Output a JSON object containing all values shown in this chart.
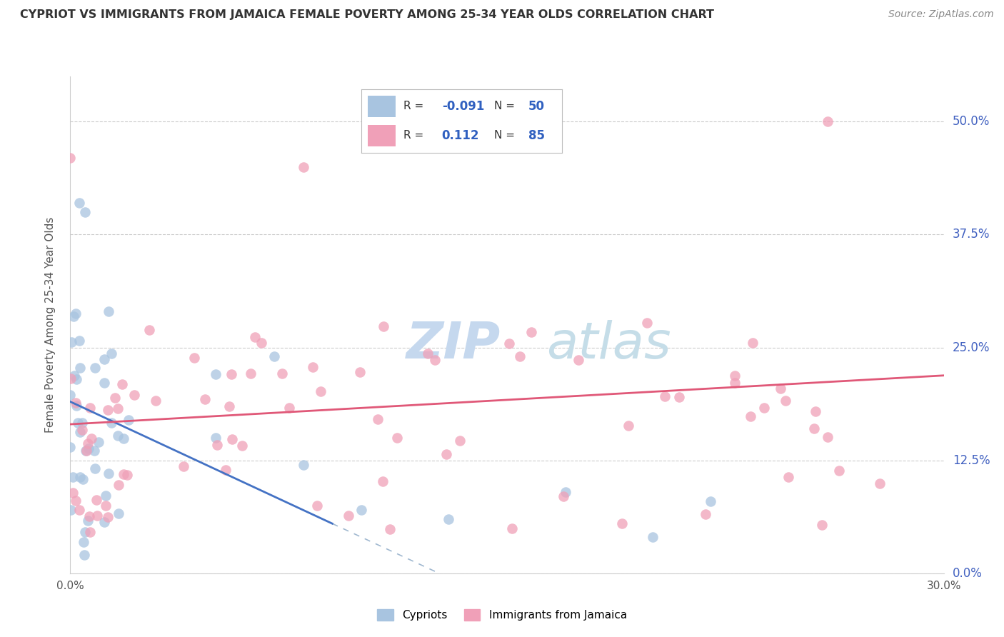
{
  "title": "CYPRIOT VS IMMIGRANTS FROM JAMAICA FEMALE POVERTY AMONG 25-34 YEAR OLDS CORRELATION CHART",
  "source": "Source: ZipAtlas.com",
  "ylabel": "Female Poverty Among 25-34 Year Olds",
  "xlim": [
    0.0,
    0.3
  ],
  "ylim": [
    0.0,
    0.55
  ],
  "ytick_labels": [
    "0.0%",
    "12.5%",
    "25.0%",
    "37.5%",
    "50.0%"
  ],
  "ytick_values": [
    0.0,
    0.125,
    0.25,
    0.375,
    0.5
  ],
  "xtick_labels": [
    "0.0%",
    "30.0%"
  ],
  "xtick_values": [
    0.0,
    0.3
  ],
  "legend_label1": "Cypriots",
  "legend_label2": "Immigrants from Jamaica",
  "R1": -0.091,
  "N1": 50,
  "R2": 0.112,
  "N2": 85,
  "color_blue": "#a8c4e0",
  "color_pink": "#f0a0b8",
  "color_blue_line": "#4472c4",
  "color_pink_line": "#e05878",
  "color_dashed": "#a0b8d0",
  "background_color": "#ffffff"
}
